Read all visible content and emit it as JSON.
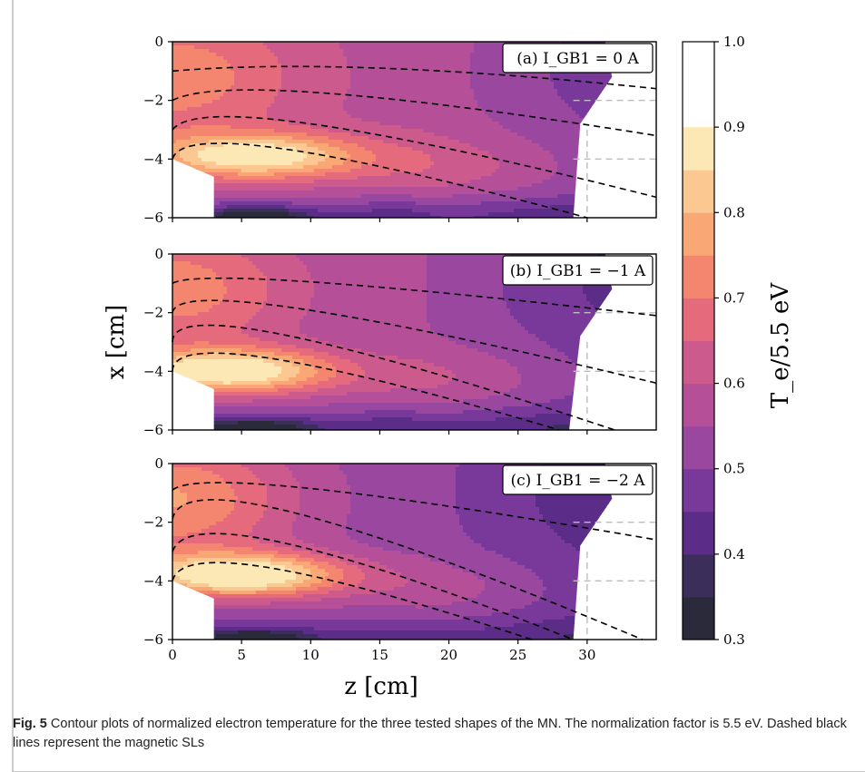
{
  "figure": {
    "label": "Fig. 5",
    "caption": "Contour plots of normalized electron temperature for the three tested shapes of the MN. The normalization factor is 5.5 eV. Dashed black lines represent the magnetic SLs"
  },
  "colors": {
    "levels": [
      "#2b2a3b",
      "#3c2e5a",
      "#5b2d88",
      "#78399a",
      "#9a47a0",
      "#b44f98",
      "#cd5a8c",
      "#e46a7c",
      "#f48670",
      "#f9a775",
      "#fbc891",
      "#fce8b4"
    ],
    "axes": "#000000",
    "streamline": "#000000",
    "guide": "#bdbdbd"
  },
  "chart_data": {
    "type": "heatmap",
    "xlabel": "z [cm]",
    "ylabel": "x [cm]",
    "colorbar": {
      "label": "T_e/5.5 eV",
      "range": [
        0.3,
        1.0
      ],
      "boundaries": [
        0.3,
        0.35,
        0.4,
        0.45,
        0.5,
        0.55,
        0.6,
        0.65,
        0.7,
        0.75,
        0.8,
        0.85,
        0.9
      ],
      "ticks": [
        "0.3",
        "0.4",
        "0.5",
        "0.6",
        "0.7",
        "0.8",
        "0.9",
        "1.0"
      ],
      "tick_values": [
        0.3,
        0.4,
        0.5,
        0.6,
        0.7,
        0.8,
        0.9,
        1.0
      ]
    },
    "xlim": [
      0,
      35
    ],
    "xticks": [
      0,
      5,
      10,
      15,
      20,
      25,
      30
    ],
    "xtick_labels": [
      "0",
      "5",
      "10",
      "15",
      "20",
      "25",
      "30"
    ],
    "ylim": [
      -6,
      0
    ],
    "yticks": [
      0,
      -2,
      -4,
      -6
    ],
    "ytick_labels": [
      "0",
      "−2",
      "−4",
      "−6"
    ],
    "grid": "dashed grey reference lines at z=30 and x=-2, x=-4",
    "panels": [
      {
        "label": "(a) I_GB1 = 0 A",
        "domain_edge": [
          [
            3,
            -6
          ],
          [
            3,
            -4.6
          ],
          [
            0,
            -4
          ],
          [
            0,
            0
          ],
          [
            31.3,
            0
          ],
          [
            31.8,
            -1.2
          ],
          [
            29.5,
            -2.8
          ],
          [
            29,
            -6
          ]
        ],
        "cutout_edge": [
          [
            29,
            -6
          ],
          [
            29,
            -3
          ],
          [
            31,
            -3
          ],
          [
            31.3,
            0
          ]
        ],
        "field": {
          "base": 0.58,
          "cold_spot": {
            "z": 16,
            "x": -5.8,
            "value": 0.42
          },
          "hot_spot": {
            "z": 6,
            "x": -3.9,
            "value": 0.9
          },
          "near_field": 0.75
        },
        "streamlines": [
          {
            "x0": -1.0,
            "peak": [
              15,
              -0.9
            ],
            "end": [
              35,
              -1.6
            ]
          },
          {
            "x0": -2.0,
            "peak": [
              11,
              -1.75
            ],
            "end": [
              35,
              -3.2
            ]
          },
          {
            "x0": -3.0,
            "peak": [
              10,
              -2.8
            ],
            "end": [
              35,
              -5.3
            ]
          },
          {
            "x0": -4.0,
            "peak": [
              8,
              -3.65
            ],
            "end": [
              30,
              -6
            ]
          }
        ]
      },
      {
        "label": "(b) I_GB1 = −1 A",
        "domain_edge": [
          [
            3,
            -6
          ],
          [
            3,
            -4.6
          ],
          [
            0,
            -4
          ],
          [
            0,
            0
          ],
          [
            31.3,
            0
          ],
          [
            31.8,
            -1.2
          ],
          [
            29.5,
            -2.8
          ],
          [
            28.7,
            -6
          ]
        ],
        "cutout_edge": [
          [
            28.7,
            -6
          ],
          [
            29,
            -3
          ],
          [
            31,
            -3
          ],
          [
            31.3,
            0
          ]
        ],
        "field": {
          "base": 0.55,
          "cold_spot": {
            "z": 16,
            "x": -5.8,
            "value": 0.4
          },
          "hot_spot": {
            "z": 4,
            "x": -4.0,
            "value": 0.92
          },
          "near_field": 0.75
        },
        "streamlines": [
          {
            "x0": -1.0,
            "peak": [
              10,
              -0.95
            ],
            "end": [
              35,
              -2.1
            ]
          },
          {
            "x0": -2.0,
            "peak": [
              9,
              -1.85
            ],
            "end": [
              35,
              -4.4
            ]
          },
          {
            "x0": -3.0,
            "peak": [
              8,
              -2.75
            ],
            "end": [
              32,
              -6
            ]
          },
          {
            "x0": -4.0,
            "peak": [
              7,
              -3.55
            ],
            "end": [
              28,
              -6
            ]
          }
        ]
      },
      {
        "label": "(c) I_GB1 = −2 A",
        "domain_edge": [
          [
            3,
            -6
          ],
          [
            3,
            -4.6
          ],
          [
            0,
            -4
          ],
          [
            0,
            0
          ],
          [
            31.3,
            0
          ],
          [
            31.8,
            -1.2
          ],
          [
            29.5,
            -2.8
          ],
          [
            29,
            -6
          ]
        ],
        "cutout_edge": [
          [
            29,
            -6
          ],
          [
            29,
            -3
          ],
          [
            31,
            -3
          ],
          [
            31.3,
            0
          ]
        ],
        "field": {
          "base": 0.52,
          "cold_spot": {
            "z": 16,
            "x": -5.8,
            "value": 0.42
          },
          "hot_spot": {
            "z": 5,
            "x": -3.8,
            "value": 0.92
          },
          "near_field": 0.78
        },
        "streamlines": [
          {
            "x0": -0.9,
            "peak": [
              10,
              -0.85
            ],
            "end": [
              35,
              -2.6
            ]
          },
          {
            "x0": -1.9,
            "peak": [
              9,
              -1.7
            ],
            "end": [
              34,
              -6
            ]
          },
          {
            "x0": -3.0,
            "peak": [
              8,
              -2.7
            ],
            "end": [
              29,
              -6
            ]
          },
          {
            "x0": -4.0,
            "peak": [
              7,
              -3.55
            ],
            "end": [
              26,
              -6
            ]
          }
        ]
      }
    ]
  }
}
